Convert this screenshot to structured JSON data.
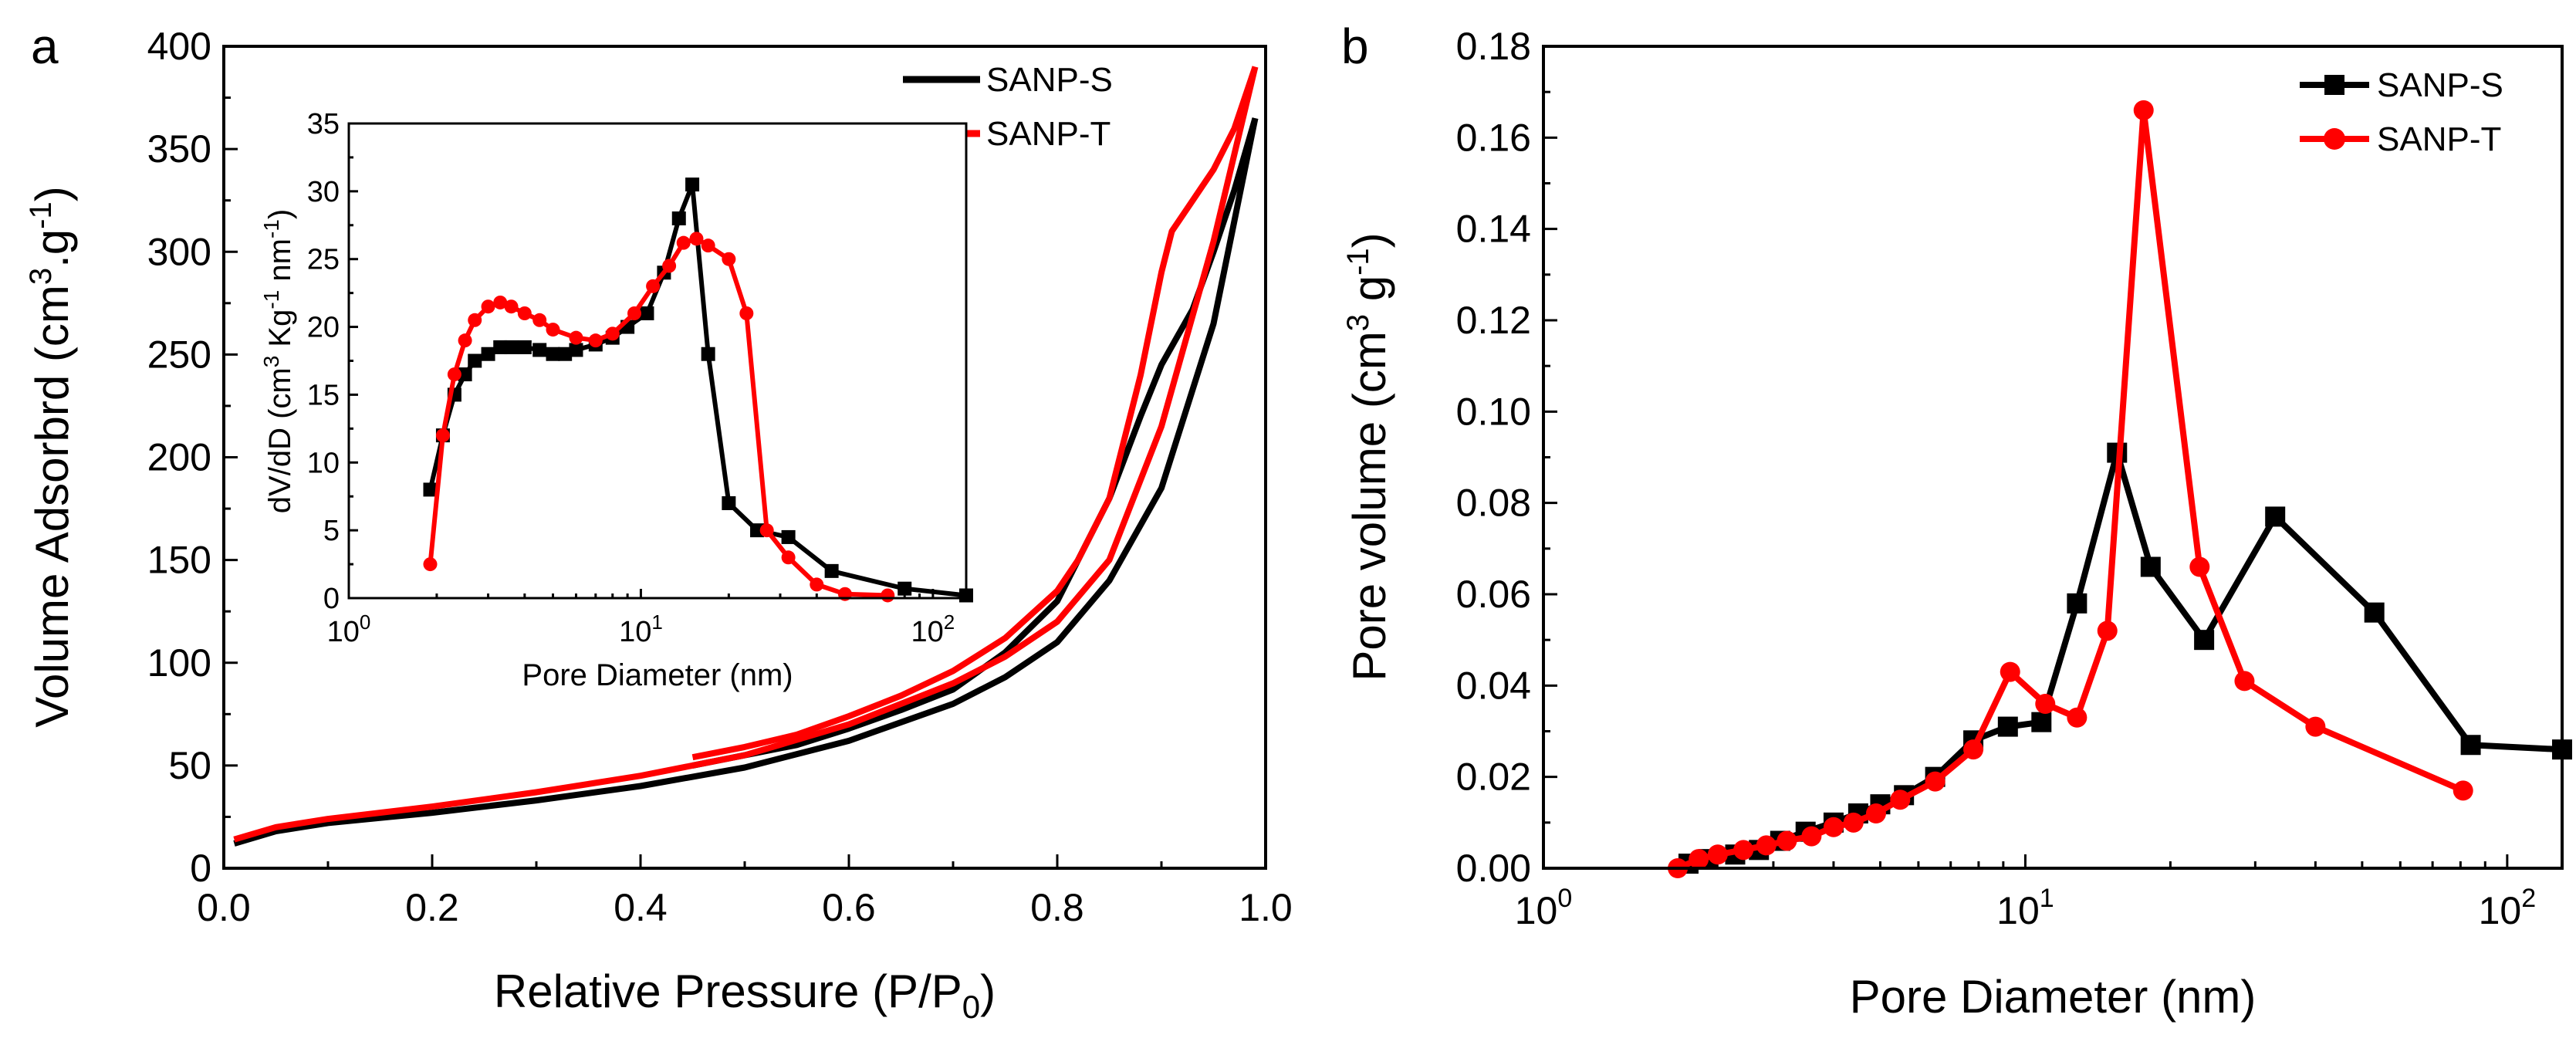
{
  "colors": {
    "SANP-S": "#000000",
    "SANP-T": "#ff0000"
  },
  "chart_data": [
    {
      "panel": "a",
      "type": "line",
      "title": "",
      "xlabel": "Relative Pressure (P/P0)",
      "xlabel_main": "Relative Pressure (P/P",
      "xlabel_sub": "0",
      "xlabel_end": ")",
      "ylabel": "Volume Adsorbrd (cm3.g-1)",
      "ylabel_main": "Volume Adsorbrd (cm",
      "ylabel_sup1": "3",
      "ylabel_mid": ".g",
      "ylabel_sup2": "-1",
      "ylabel_end": ")",
      "xlim": [
        0.0,
        1.0
      ],
      "ylim": [
        0,
        400
      ],
      "xticks": [
        "0.0",
        "0.2",
        "0.4",
        "0.6",
        "0.8",
        "1.0"
      ],
      "yticks": [
        "0",
        "50",
        "100",
        "150",
        "200",
        "250",
        "300",
        "350",
        "400"
      ],
      "legend": [
        "SANP-S",
        "SANP-T"
      ],
      "series": [
        {
          "name": "SANP-S",
          "part": "adsorption",
          "x": [
            0.01,
            0.05,
            0.1,
            0.2,
            0.3,
            0.4,
            0.5,
            0.6,
            0.7,
            0.75,
            0.8,
            0.85,
            0.9,
            0.95,
            0.99
          ],
          "y": [
            12,
            18,
            22,
            27,
            33,
            40,
            49,
            62,
            80,
            93,
            110,
            140,
            185,
            265,
            365
          ]
        },
        {
          "name": "SANP-S",
          "part": "desorption",
          "x": [
            0.99,
            0.97,
            0.95,
            0.93,
            0.9,
            0.88,
            0.85,
            0.82,
            0.8,
            0.75,
            0.7,
            0.65,
            0.6,
            0.55,
            0.5,
            0.45
          ],
          "y": [
            365,
            330,
            300,
            272,
            245,
            220,
            180,
            150,
            130,
            105,
            87,
            77,
            68,
            60,
            55,
            50
          ]
        },
        {
          "name": "SANP-T",
          "part": "adsorption",
          "x": [
            0.01,
            0.05,
            0.1,
            0.2,
            0.3,
            0.4,
            0.5,
            0.6,
            0.7,
            0.75,
            0.8,
            0.85,
            0.9,
            0.95,
            0.99
          ],
          "y": [
            14,
            20,
            24,
            30,
            37,
            45,
            55,
            70,
            90,
            103,
            120,
            150,
            215,
            305,
            390
          ]
        },
        {
          "name": "SANP-T",
          "part": "desorption",
          "x": [
            0.99,
            0.97,
            0.95,
            0.93,
            0.91,
            0.9,
            0.88,
            0.85,
            0.82,
            0.8,
            0.75,
            0.7,
            0.65,
            0.6,
            0.55,
            0.5,
            0.45
          ],
          "y": [
            390,
            360,
            340,
            325,
            310,
            290,
            240,
            180,
            150,
            135,
            112,
            96,
            84,
            74,
            65,
            59,
            54
          ]
        }
      ],
      "inset": {
        "type": "line",
        "xlabel": "Pore Diameter (nm)",
        "ylabel": "dV/dD (cm3 Kg-1 nm-1)",
        "ylabel_a": "dV/dD (cm",
        "ylabel_s1": "3",
        "ylabel_b": " Kg",
        "ylabel_s2": "-1",
        "ylabel_c": " nm",
        "ylabel_s3": "-1",
        "ylabel_d": ")",
        "xscale": "log",
        "xlim": [
          1,
          130
        ],
        "ylim": [
          0,
          35
        ],
        "xticks": [
          {
            "v": 1,
            "base": "10",
            "exp": "0"
          },
          {
            "v": 10,
            "base": "10",
            "exp": "1"
          },
          {
            "v": 100,
            "base": "10",
            "exp": "2"
          }
        ],
        "yticks": [
          "0",
          "5",
          "10",
          "15",
          "20",
          "25",
          "30",
          "35"
        ],
        "series": [
          {
            "name": "SANP-S",
            "marker": "square",
            "x": [
              1.9,
              2.1,
              2.3,
              2.5,
              2.7,
              3.0,
              3.3,
              3.6,
              4.0,
              4.5,
              5.0,
              5.5,
              6.0,
              7.0,
              8.0,
              9.0,
              10.5,
              12.0,
              13.5,
              15.0,
              17.0,
              20.0,
              25.0,
              32.0,
              45.0,
              80.0,
              130.0
            ],
            "y": [
              8,
              12,
              15,
              16.5,
              17.5,
              18,
              18.5,
              18.5,
              18.5,
              18.3,
              18,
              18,
              18.3,
              18.7,
              19.2,
              20,
              21,
              24,
              28,
              30.5,
              18,
              7,
              5,
              4.5,
              2,
              0.7,
              0.2
            ]
          },
          {
            "name": "SANP-T",
            "marker": "circle",
            "x": [
              1.9,
              2.1,
              2.3,
              2.5,
              2.7,
              3.0,
              3.3,
              3.6,
              4.0,
              4.5,
              5.0,
              6.0,
              7.0,
              8.0,
              9.5,
              11.0,
              12.5,
              14.0,
              15.5,
              17.0,
              20.0,
              23.0,
              27.0,
              32.0,
              40.0,
              50.0,
              70.0
            ],
            "y": [
              2.5,
              12,
              16.5,
              19,
              20.5,
              21.5,
              21.8,
              21.5,
              21,
              20.5,
              19.8,
              19.2,
              19,
              19.5,
              21,
              23,
              24.5,
              26.2,
              26.5,
              26,
              25,
              21,
              5,
              3,
              1,
              0.3,
              0.2
            ]
          }
        ]
      }
    },
    {
      "panel": "b",
      "type": "line",
      "title": "",
      "xlabel": "Pore Diameter (nm)",
      "ylabel": "Pore volume (cm3 g-1)",
      "ylabel_main": "Pore volume (cm",
      "ylabel_sup1": "3",
      "ylabel_mid": " g",
      "ylabel_sup2": "-1",
      "ylabel_end": ")",
      "xscale": "log",
      "xlim": [
        1,
        130
      ],
      "ylim": [
        0,
        0.18
      ],
      "xticks": [
        {
          "v": 1,
          "base": "10",
          "exp": "0"
        },
        {
          "v": 10,
          "base": "10",
          "exp": "1"
        },
        {
          "v": 100,
          "base": "10",
          "exp": "2"
        }
      ],
      "yticks": [
        "0.00",
        "0.02",
        "0.04",
        "0.06",
        "0.08",
        "0.10",
        "0.12",
        "0.14",
        "0.16",
        "0.18"
      ],
      "legend": [
        "SANP-S",
        "SANP-T"
      ],
      "series": [
        {
          "name": "SANP-S",
          "marker": "square",
          "x": [
            2.0,
            2.2,
            2.5,
            2.8,
            3.1,
            3.5,
            4.0,
            4.5,
            5.0,
            5.6,
            6.5,
            7.8,
            9.2,
            10.8,
            12.8,
            15.5,
            18.2,
            23.5,
            33.0,
            53.0,
            84.0,
            130.0
          ],
          "y": [
            0.001,
            0.002,
            0.003,
            0.004,
            0.006,
            0.008,
            0.01,
            0.012,
            0.014,
            0.016,
            0.02,
            0.028,
            0.031,
            0.032,
            0.058,
            0.091,
            0.066,
            0.05,
            0.077,
            0.056,
            0.027,
            0.026
          ]
        },
        {
          "name": "SANP-T",
          "marker": "circle",
          "x": [
            1.9,
            2.1,
            2.3,
            2.6,
            2.9,
            3.2,
            3.6,
            4.0,
            4.4,
            4.9,
            5.5,
            6.5,
            7.8,
            9.3,
            11.0,
            12.8,
            14.8,
            17.6,
            23.0,
            28.5,
            40.0,
            81.0
          ],
          "y": [
            0.0,
            0.002,
            0.003,
            0.004,
            0.005,
            0.006,
            0.007,
            0.009,
            0.01,
            0.012,
            0.015,
            0.019,
            0.026,
            0.043,
            0.036,
            0.033,
            0.052,
            0.166,
            0.066,
            0.041,
            0.031,
            0.017
          ]
        }
      ]
    }
  ]
}
